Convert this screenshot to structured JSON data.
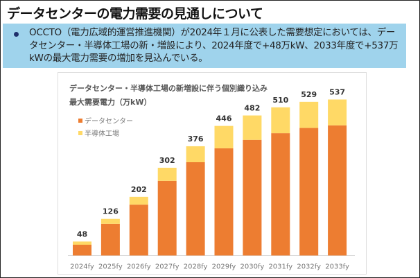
{
  "slide": {
    "title": "データセンターの電力需要の見通しについて",
    "bullet_text": "OCCTO（電力広域的運営推進機関）が2024年１月に公表した需要想定においては、データセンター・半導体工場の新・増設により、2024年度で+48万kW、2033年度で+537万kWの最大電力需要の増加を見込んでいる。",
    "note_bg_color": "#9fd3ec"
  },
  "chart_data": {
    "type": "bar",
    "stacked": true,
    "title": "データセンター・半導体工場の新増設に伴う個別織り込み",
    "ylabel": "最大需要電力（万kW）",
    "categories": [
      "2024fy",
      "2025fy",
      "2026fy",
      "2027fy",
      "2028fy",
      "2029fy",
      "2030fy",
      "2031fy",
      "2032fy",
      "2033fy"
    ],
    "series": [
      {
        "name": "データセンター",
        "color": "#ed7d31",
        "values": [
          37,
          109,
          175,
          257,
          321,
          369,
          398,
          421,
          439,
          448
        ]
      },
      {
        "name": "半導体工場",
        "color": "#ffd966",
        "values": [
          11,
          17,
          27,
          45,
          55,
          77,
          84,
          89,
          90,
          89
        ]
      }
    ],
    "totals": [
      48,
      126,
      202,
      302,
      376,
      446,
      482,
      510,
      529,
      537
    ],
    "ylim": [
      0,
      537
    ],
    "grid": false,
    "legend": "top-left",
    "y_axis_shown": false
  }
}
